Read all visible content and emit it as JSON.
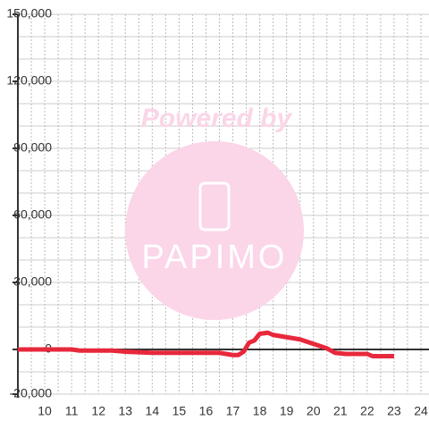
{
  "chart_data": {
    "type": "line",
    "watermark": {
      "line1": "Powered by",
      "line2": "PAPIMO"
    },
    "x": [
      9,
      11,
      11.3,
      12.5,
      13,
      14,
      15,
      16.5,
      17,
      17.2,
      17.4,
      17.6,
      17.8,
      18,
      18.3,
      18.5,
      19,
      19.5,
      20,
      20.5,
      20.8,
      21.2,
      21.5,
      22,
      22.2,
      22.5,
      23
    ],
    "series": [
      {
        "color": "#e8283c",
        "values": [
          0,
          0,
          -500,
          -500,
          -1000,
          -1500,
          -1500,
          -1500,
          -2500,
          -2500,
          -1000,
          3000,
          4000,
          7000,
          7500,
          6500,
          5500,
          4500,
          2500,
          500,
          -1500,
          -2000,
          -2000,
          -2000,
          -3000,
          -3000,
          -3000
        ]
      }
    ],
    "xlim": [
      9,
      24.3
    ],
    "ylim": [
      -20000,
      150000
    ],
    "xticks": [
      10,
      11,
      12,
      13,
      14,
      15,
      16,
      17,
      18,
      19,
      20,
      21,
      22,
      23,
      24
    ],
    "x_minor_ticks": [
      9.5,
      10.5,
      11.5,
      12.5,
      13.5,
      14.5,
      15.5,
      16.5,
      17.5,
      18.5,
      19.5,
      20.5,
      21.5,
      22.5,
      23.5
    ],
    "yticks": [
      {
        "value": -20000,
        "label": "-20,000"
      },
      0,
      {
        "value": 30000,
        "label": "30,000"
      },
      {
        "value": 60000,
        "label": "60,000"
      },
      {
        "value": 90000,
        "label": "90,000"
      },
      {
        "value": 120000,
        "label": "120,000"
      },
      {
        "value": 150000,
        "label": "150,000"
      }
    ],
    "y_minor_ticks": [
      -10000,
      10000,
      20000,
      40000,
      50000,
      70000,
      80000,
      100000,
      110000,
      130000,
      140000
    ],
    "grid": true
  }
}
